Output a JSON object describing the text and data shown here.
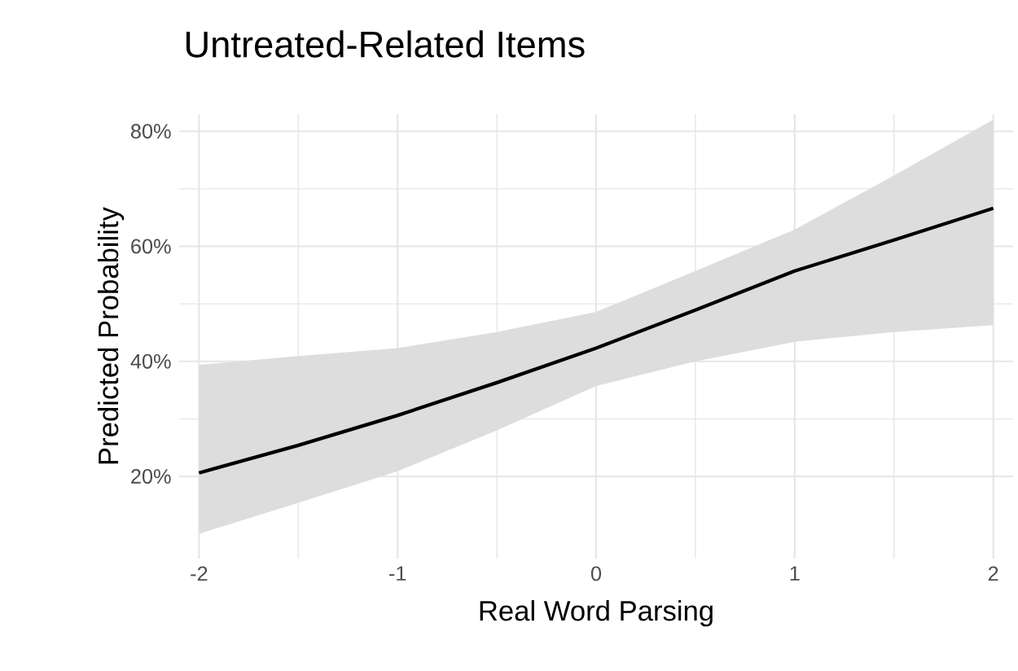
{
  "chart_data": {
    "type": "line",
    "title": "Untreated-Related Items",
    "xlabel": "Real Word Parsing",
    "ylabel": "Predicted Probability",
    "x": [
      -2,
      -1.5,
      -1,
      -0.5,
      0,
      0.5,
      1,
      1.5,
      2
    ],
    "series": [
      {
        "color": "#000000",
        "values": [
          20.6,
          25.4,
          30.6,
          36.3,
          42.3,
          48.9,
          55.7,
          61.1,
          66.6
        ],
        "lower": [
          10,
          15.4,
          20.9,
          28,
          35.7,
          40,
          43.4,
          45.1,
          46.3
        ],
        "upper": [
          39.4,
          40.9,
          42.3,
          45.1,
          48.6,
          55.7,
          62.9,
          72.3,
          82
        ]
      }
    ],
    "xlim": [
      -2.1,
      2.1
    ],
    "ylim": [
      5.7,
      83
    ],
    "xticks": [
      -2,
      -1,
      0,
      1,
      2
    ],
    "yticks": [
      {
        "value": 20,
        "label": "20%"
      },
      {
        "value": 40,
        "label": "40%"
      },
      {
        "value": 60,
        "label": "60%"
      },
      {
        "value": 80,
        "label": "80%"
      }
    ],
    "grid": true,
    "marker": "none",
    "line_style": "solid"
  }
}
